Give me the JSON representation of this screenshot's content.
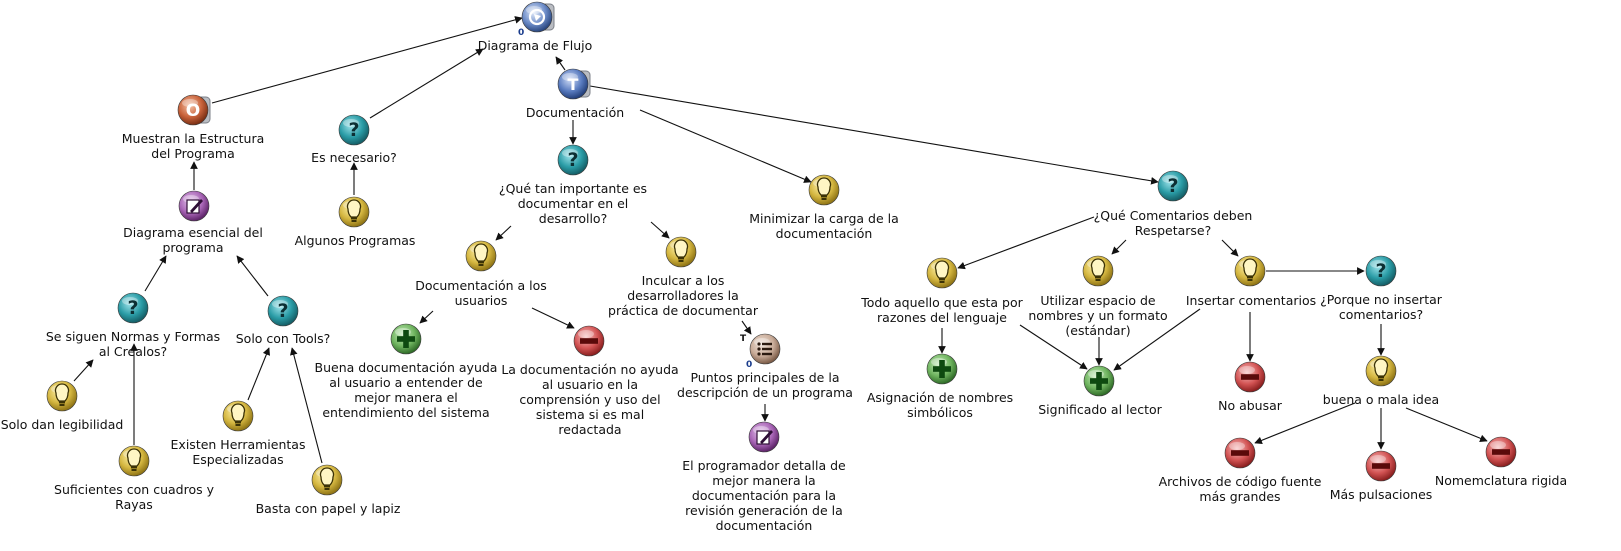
{
  "nodes": [
    {
      "id": "root",
      "icon": "map-root",
      "label": "Diagrama de Flujo",
      "badge": "0"
    },
    {
      "id": "estructura",
      "icon": "position",
      "label": "Muestran la Estructura\ndel Programa"
    },
    {
      "id": "necesario",
      "icon": "question",
      "label": "Es necesario?"
    },
    {
      "id": "documentacion",
      "icon": "topic",
      "label": "Documentación"
    },
    {
      "id": "esencial",
      "icon": "note",
      "label": "Diagrama esencial del\nprograma"
    },
    {
      "id": "algunos",
      "icon": "idea",
      "label": "Algunos Programas"
    },
    {
      "id": "importante",
      "icon": "question",
      "label": "¿Qué tan importante es\ndocumentar en el\ndesarrollo?"
    },
    {
      "id": "minimizar",
      "icon": "idea",
      "label": "Minimizar la carga de la\ndocumentación"
    },
    {
      "id": "comentarios",
      "icon": "question",
      "label": "¿Qué Comentarios deben\nRespetarse?"
    },
    {
      "id": "normas",
      "icon": "question",
      "label": "Se siguen Normas y Formas\nal Crealos?"
    },
    {
      "id": "tools",
      "icon": "question",
      "label": "Solo con Tools?"
    },
    {
      "id": "legibilidad",
      "icon": "idea",
      "label": "Solo dan legibilidad"
    },
    {
      "id": "cuadros",
      "icon": "idea",
      "label": "Suficientes con cuadros y\nRayas"
    },
    {
      "id": "herramientas",
      "icon": "idea",
      "label": "Existen Herramientas\nEspecializadas"
    },
    {
      "id": "papel",
      "icon": "idea",
      "label": "Basta con papel y lapiz"
    },
    {
      "id": "usuarios",
      "icon": "idea",
      "label": "Documentación a los\nusuarios"
    },
    {
      "id": "inculcar",
      "icon": "idea",
      "label": "Inculcar a los\ndesarrolladores la\npráctica de documentar"
    },
    {
      "id": "buena",
      "icon": "pro",
      "label": "Buena documentación ayuda\nal usuario a entender de\nmejor manera el\nentendimiento del sistema"
    },
    {
      "id": "noayuda",
      "icon": "con",
      "label": "La documentación no ayuda\nal usuario en la\ncomprensión y uso del\nsistema si es mal\nredactada"
    },
    {
      "id": "puntos",
      "icon": "list",
      "label": "Puntos principales de la\ndescripción de un programa",
      "badge": "0",
      "tag": "T"
    },
    {
      "id": "programador",
      "icon": "note",
      "label": "El programador detalla de\nmejor manera la\ndocumentación para la\nrevisión generación de la\ndocumentación"
    },
    {
      "id": "lenguaje",
      "icon": "idea",
      "label": "Todo aquello que esta por\nrazones del lenguaje"
    },
    {
      "id": "espacio",
      "icon": "idea",
      "label": "Utilizar espacio de\nnombres y un formato\n(estándar)"
    },
    {
      "id": "insertar",
      "icon": "idea",
      "label": "Insertar comentarios"
    },
    {
      "id": "porque",
      "icon": "question",
      "label": "¿Porque no insertar\ncomentarios?"
    },
    {
      "id": "asignacion",
      "icon": "pro",
      "label": "Asignación de nombres\nsimbólicos"
    },
    {
      "id": "significado",
      "icon": "pro",
      "label": "Significado al lector"
    },
    {
      "id": "abusar",
      "icon": "con",
      "label": "No abusar"
    },
    {
      "id": "buenamala",
      "icon": "idea",
      "label": "buena o mala idea"
    },
    {
      "id": "archivos",
      "icon": "con",
      "label": "Archivos de código fuente\nmás grandes"
    },
    {
      "id": "pulsaciones",
      "icon": "con",
      "label": "Más pulsaciones"
    },
    {
      "id": "nomenclatura",
      "icon": "con",
      "label": "Nomemclatura rigida"
    }
  ],
  "edges": [
    [
      "estructura",
      "root"
    ],
    [
      "necesario",
      "root"
    ],
    [
      "documentacion",
      "root"
    ],
    [
      "esencial",
      "estructura"
    ],
    [
      "algunos",
      "necesario"
    ],
    [
      "documentacion",
      "importante"
    ],
    [
      "documentacion",
      "minimizar"
    ],
    [
      "documentacion",
      "comentarios"
    ],
    [
      "normas",
      "esencial"
    ],
    [
      "tools",
      "esencial"
    ],
    [
      "legibilidad",
      "normas"
    ],
    [
      "cuadros",
      "normas"
    ],
    [
      "herramientas",
      "tools"
    ],
    [
      "papel",
      "tools"
    ],
    [
      "importante",
      "usuarios"
    ],
    [
      "importante",
      "inculcar"
    ],
    [
      "usuarios",
      "buena"
    ],
    [
      "usuarios",
      "noayuda"
    ],
    [
      "inculcar",
      "puntos"
    ],
    [
      "puntos",
      "programador"
    ],
    [
      "comentarios",
      "lenguaje"
    ],
    [
      "comentarios",
      "espacio"
    ],
    [
      "comentarios",
      "insertar"
    ],
    [
      "lenguaje",
      "asignacion"
    ],
    [
      "lenguaje",
      "significado"
    ],
    [
      "espacio",
      "significado"
    ],
    [
      "insertar",
      "significado"
    ],
    [
      "insertar",
      "abusar"
    ],
    [
      "insertar",
      "porque"
    ],
    [
      "porque",
      "buenamala"
    ],
    [
      "buenamala",
      "archivos"
    ],
    [
      "buenamala",
      "pulsaciones"
    ],
    [
      "buenamala",
      "nomenclatura"
    ]
  ],
  "colors": {
    "edge": "#111111",
    "question": "#2a9ca6",
    "idea": "#d4b640",
    "pro": "#3e8e37",
    "con": "#c43a3a",
    "note": "#8a3d99",
    "position": "#c0532e",
    "topic": "#4a6bb0",
    "list": "#8a6a58",
    "badge": "#1a3c8c"
  }
}
